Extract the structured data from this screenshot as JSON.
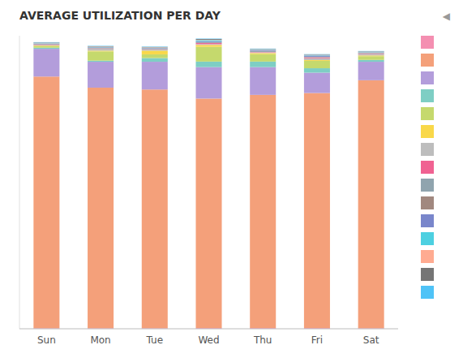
{
  "chart_data": {
    "type": "bar",
    "stacked": true,
    "title": "AVERAGE UTILIZATION PER DAY",
    "annotations": [
      "◀"
    ],
    "categories": [
      "Sun",
      "Mon",
      "Tue",
      "Wed",
      "Thu",
      "Fri",
      "Sat"
    ],
    "series": [
      {
        "color": "#f48fb1",
        "values": [
          0.15,
          0.15,
          0.15,
          0.2,
          0.2,
          0.2,
          0.15
        ]
      },
      {
        "color": "#f4a07a",
        "values": [
          68.0,
          65.0,
          64.5,
          62.0,
          63.0,
          63.5,
          67.0
        ]
      },
      {
        "color": "#b39ddb",
        "values": [
          7.5,
          7.0,
          7.5,
          8.5,
          7.5,
          5.5,
          5.0
        ]
      },
      {
        "color": "#7ecec4",
        "values": [
          0.3,
          0.3,
          1.0,
          1.5,
          1.5,
          1.2,
          0.5
        ]
      },
      {
        "color": "#c5d96d",
        "values": [
          0.5,
          2.5,
          1.0,
          4.0,
          2.0,
          2.0,
          1.0
        ]
      },
      {
        "color": "#f9d849",
        "values": [
          0.1,
          0.2,
          1.0,
          0.5,
          0.3,
          0.2,
          0.2
        ]
      },
      {
        "color": "#bdbdbd",
        "values": [
          0.1,
          0.5,
          0.3,
          0.2,
          0.2,
          0.5,
          0.4
        ]
      },
      {
        "color": "#f06292",
        "values": [
          0.1,
          0.1,
          0.1,
          0.3,
          0.1,
          0.2,
          0.1
        ]
      },
      {
        "color": "#90a4ae",
        "values": [
          0.1,
          0.1,
          0.1,
          0.2,
          0.2,
          0.1,
          0.1
        ]
      },
      {
        "color": "#a1887f",
        "values": [
          0.1,
          0.1,
          0.1,
          0.1,
          0.1,
          0.1,
          0.1
        ]
      },
      {
        "color": "#7986cb",
        "values": [
          0.1,
          0.1,
          0.1,
          0.2,
          0.2,
          0.3,
          0.1
        ]
      },
      {
        "color": "#4dd0e1",
        "values": [
          0.1,
          0.1,
          0.1,
          0.3,
          0.1,
          0.1,
          0.1
        ]
      },
      {
        "color": "#ffab91",
        "values": [
          0.1,
          0.1,
          0.1,
          0.1,
          0.1,
          0.1,
          0.1
        ]
      },
      {
        "color": "#757575",
        "values": [
          0.1,
          0.1,
          0.1,
          0.2,
          0.1,
          0.1,
          0.1
        ]
      },
      {
        "color": "#4fc3f7",
        "values": [
          0.1,
          0.1,
          0.1,
          0.1,
          0.1,
          0.1,
          0.1
        ]
      }
    ],
    "ylim": [
      0,
      79.184
    ],
    "tick_labels": "x",
    "grid": false,
    "legend": "right"
  }
}
